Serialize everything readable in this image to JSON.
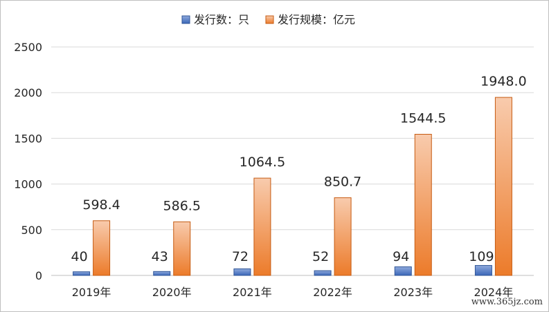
{
  "legend": [
    {
      "label": "发行数：只",
      "color": "#4472C4"
    },
    {
      "label": "发行规模：亿元",
      "color": "#ED7D31"
    }
  ],
  "watermark": "www.365jz.com",
  "chart_data": {
    "type": "bar",
    "categories": [
      "2019年",
      "2020年",
      "2021年",
      "2022年",
      "2023年",
      "2024年"
    ],
    "series": [
      {
        "name": "发行数：只",
        "values": [
          40,
          43,
          72,
          52,
          94,
          109
        ],
        "labels": [
          "40",
          "43",
          "72",
          "52",
          "94",
          "109"
        ]
      },
      {
        "name": "发行规模：亿元",
        "values": [
          598.4,
          586.5,
          1064.5,
          850.7,
          1544.5,
          1948.0
        ],
        "labels": [
          "598.4",
          "586.5",
          "1064.5",
          "850.7",
          "1544.5",
          "1948.0"
        ]
      }
    ],
    "yticks": [
      "0",
      "500",
      "1000",
      "1500",
      "2000",
      "2500"
    ],
    "ylim": [
      0,
      2500
    ],
    "grid": true,
    "legend_position": "top-center"
  }
}
